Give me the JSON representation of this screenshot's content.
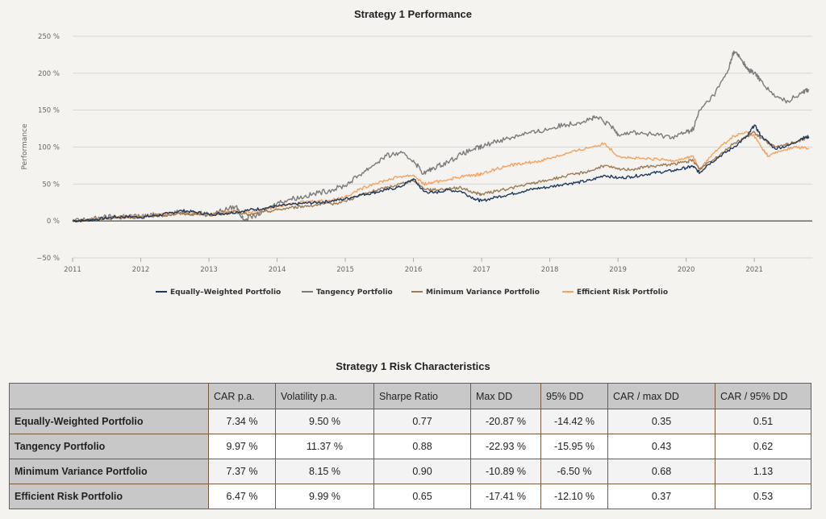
{
  "chart_data": {
    "type": "line",
    "title": "Strategy 1 Performance",
    "xlabel": "",
    "ylabel": "Performance",
    "xlim": [
      2011.0,
      2021.85
    ],
    "ylim": [
      -50,
      250
    ],
    "x_ticks": [
      "2011",
      "2012",
      "2013",
      "2014",
      "2015",
      "2016",
      "2017",
      "2018",
      "2019",
      "2020",
      "2021"
    ],
    "y_ticks": [
      "250 %",
      "200 %",
      "150 %",
      "100 %",
      "50 %",
      "0 %",
      "−50 %"
    ],
    "grid": true,
    "legend_position": "bottom",
    "series": [
      {
        "name": "Equally–Weighted Portfolio",
        "color": "#1f3a5f",
        "points": [
          [
            2011.0,
            0
          ],
          [
            2011.2,
            1
          ],
          [
            2011.4,
            3
          ],
          [
            2011.6,
            5
          ],
          [
            2011.8,
            6
          ],
          [
            2012.0,
            5
          ],
          [
            2012.2,
            7
          ],
          [
            2012.4,
            10
          ],
          [
            2012.6,
            14
          ],
          [
            2012.8,
            12
          ],
          [
            2013.0,
            9
          ],
          [
            2013.2,
            10
          ],
          [
            2013.4,
            12
          ],
          [
            2013.6,
            15
          ],
          [
            2013.8,
            17
          ],
          [
            2014.0,
            20
          ],
          [
            2014.2,
            22
          ],
          [
            2014.4,
            24
          ],
          [
            2014.6,
            25
          ],
          [
            2014.8,
            27
          ],
          [
            2015.0,
            30
          ],
          [
            2015.2,
            35
          ],
          [
            2015.4,
            38
          ],
          [
            2015.6,
            42
          ],
          [
            2015.8,
            46
          ],
          [
            2016.0,
            57
          ],
          [
            2016.15,
            40
          ],
          [
            2016.3,
            38
          ],
          [
            2016.5,
            42
          ],
          [
            2016.7,
            40
          ],
          [
            2016.9,
            30
          ],
          [
            2017.0,
            27
          ],
          [
            2017.2,
            32
          ],
          [
            2017.4,
            36
          ],
          [
            2017.6,
            40
          ],
          [
            2017.8,
            44
          ],
          [
            2018.0,
            46
          ],
          [
            2018.2,
            50
          ],
          [
            2018.4,
            52
          ],
          [
            2018.6,
            55
          ],
          [
            2018.8,
            62
          ],
          [
            2019.0,
            58
          ],
          [
            2019.2,
            60
          ],
          [
            2019.4,
            63
          ],
          [
            2019.6,
            66
          ],
          [
            2019.8,
            68
          ],
          [
            2020.0,
            72
          ],
          [
            2020.1,
            74
          ],
          [
            2020.2,
            65
          ],
          [
            2020.3,
            75
          ],
          [
            2020.5,
            88
          ],
          [
            2020.7,
            100
          ],
          [
            2020.9,
            115
          ],
          [
            2021.0,
            130
          ],
          [
            2021.1,
            115
          ],
          [
            2021.3,
            98
          ],
          [
            2021.5,
            102
          ],
          [
            2021.7,
            112
          ],
          [
            2021.8,
            114
          ]
        ]
      },
      {
        "name": "Tangency Portfolio",
        "color": "#7b7b7b",
        "points": [
          [
            2011.0,
            0
          ],
          [
            2011.2,
            2
          ],
          [
            2011.4,
            4
          ],
          [
            2011.6,
            6
          ],
          [
            2011.8,
            7
          ],
          [
            2012.0,
            6
          ],
          [
            2012.2,
            8
          ],
          [
            2012.4,
            10
          ],
          [
            2012.6,
            12
          ],
          [
            2012.8,
            11
          ],
          [
            2013.0,
            9
          ],
          [
            2013.2,
            14
          ],
          [
            2013.4,
            20
          ],
          [
            2013.5,
            2
          ],
          [
            2013.7,
            8
          ],
          [
            2013.9,
            18
          ],
          [
            2014.0,
            24
          ],
          [
            2014.2,
            30
          ],
          [
            2014.4,
            33
          ],
          [
            2014.6,
            38
          ],
          [
            2014.8,
            42
          ],
          [
            2015.0,
            48
          ],
          [
            2015.2,
            62
          ],
          [
            2015.4,
            75
          ],
          [
            2015.6,
            88
          ],
          [
            2015.8,
            92
          ],
          [
            2016.0,
            82
          ],
          [
            2016.15,
            64
          ],
          [
            2016.3,
            72
          ],
          [
            2016.5,
            80
          ],
          [
            2016.7,
            90
          ],
          [
            2016.9,
            98
          ],
          [
            2017.0,
            100
          ],
          [
            2017.2,
            108
          ],
          [
            2017.4,
            112
          ],
          [
            2017.6,
            118
          ],
          [
            2017.8,
            120
          ],
          [
            2018.0,
            125
          ],
          [
            2018.2,
            130
          ],
          [
            2018.4,
            133
          ],
          [
            2018.6,
            138
          ],
          [
            2018.7,
            140
          ],
          [
            2018.9,
            128
          ],
          [
            2019.0,
            118
          ],
          [
            2019.2,
            120
          ],
          [
            2019.4,
            118
          ],
          [
            2019.6,
            116
          ],
          [
            2019.8,
            114
          ],
          [
            2020.0,
            120
          ],
          [
            2020.1,
            124
          ],
          [
            2020.2,
            150
          ],
          [
            2020.4,
            170
          ],
          [
            2020.6,
            200
          ],
          [
            2020.7,
            230
          ],
          [
            2020.8,
            220
          ],
          [
            2020.9,
            205
          ],
          [
            2021.0,
            200
          ],
          [
            2021.1,
            190
          ],
          [
            2021.3,
            168
          ],
          [
            2021.5,
            162
          ],
          [
            2021.7,
            175
          ],
          [
            2021.8,
            178
          ]
        ]
      },
      {
        "name": "Minimum Variance Portfolio",
        "color": "#9e7a55",
        "points": [
          [
            2011.0,
            0
          ],
          [
            2011.2,
            1
          ],
          [
            2011.4,
            2
          ],
          [
            2011.6,
            4
          ],
          [
            2011.8,
            5
          ],
          [
            2012.0,
            5
          ],
          [
            2012.2,
            7
          ],
          [
            2012.4,
            8
          ],
          [
            2012.6,
            10
          ],
          [
            2012.8,
            9
          ],
          [
            2013.0,
            8
          ],
          [
            2013.2,
            10
          ],
          [
            2013.4,
            12
          ],
          [
            2013.6,
            8
          ],
          [
            2013.8,
            12
          ],
          [
            2014.0,
            15
          ],
          [
            2014.2,
            18
          ],
          [
            2014.4,
            20
          ],
          [
            2014.6,
            22
          ],
          [
            2014.8,
            23
          ],
          [
            2015.0,
            27
          ],
          [
            2015.2,
            34
          ],
          [
            2015.4,
            40
          ],
          [
            2015.6,
            45
          ],
          [
            2015.8,
            50
          ],
          [
            2016.0,
            55
          ],
          [
            2016.15,
            44
          ],
          [
            2016.3,
            42
          ],
          [
            2016.5,
            44
          ],
          [
            2016.7,
            45
          ],
          [
            2016.9,
            38
          ],
          [
            2017.0,
            36
          ],
          [
            2017.2,
            40
          ],
          [
            2017.4,
            44
          ],
          [
            2017.6,
            48
          ],
          [
            2017.8,
            52
          ],
          [
            2018.0,
            56
          ],
          [
            2018.2,
            60
          ],
          [
            2018.4,
            64
          ],
          [
            2018.6,
            68
          ],
          [
            2018.8,
            75
          ],
          [
            2019.0,
            70
          ],
          [
            2019.2,
            70
          ],
          [
            2019.4,
            73
          ],
          [
            2019.6,
            75
          ],
          [
            2019.8,
            77
          ],
          [
            2020.0,
            80
          ],
          [
            2020.1,
            82
          ],
          [
            2020.2,
            70
          ],
          [
            2020.3,
            78
          ],
          [
            2020.5,
            90
          ],
          [
            2020.7,
            105
          ],
          [
            2020.9,
            115
          ],
          [
            2021.0,
            120
          ],
          [
            2021.1,
            112
          ],
          [
            2021.3,
            100
          ],
          [
            2021.5,
            104
          ],
          [
            2021.7,
            110
          ],
          [
            2021.8,
            113
          ]
        ]
      },
      {
        "name": "Efficient Risk Portfolio",
        "color": "#f4a261",
        "points": [
          [
            2011.0,
            0
          ],
          [
            2011.2,
            1
          ],
          [
            2011.4,
            3
          ],
          [
            2011.6,
            5
          ],
          [
            2011.8,
            6
          ],
          [
            2012.0,
            6
          ],
          [
            2012.2,
            8
          ],
          [
            2012.4,
            9
          ],
          [
            2012.6,
            11
          ],
          [
            2012.8,
            10
          ],
          [
            2013.0,
            9
          ],
          [
            2013.2,
            11
          ],
          [
            2013.4,
            14
          ],
          [
            2013.6,
            12
          ],
          [
            2013.8,
            16
          ],
          [
            2014.0,
            20
          ],
          [
            2014.2,
            24
          ],
          [
            2014.4,
            26
          ],
          [
            2014.6,
            27
          ],
          [
            2014.8,
            28
          ],
          [
            2015.0,
            33
          ],
          [
            2015.2,
            42
          ],
          [
            2015.4,
            50
          ],
          [
            2015.6,
            55
          ],
          [
            2015.8,
            60
          ],
          [
            2016.0,
            62
          ],
          [
            2016.15,
            50
          ],
          [
            2016.3,
            52
          ],
          [
            2016.5,
            56
          ],
          [
            2016.7,
            60
          ],
          [
            2016.9,
            62
          ],
          [
            2017.0,
            64
          ],
          [
            2017.2,
            70
          ],
          [
            2017.4,
            75
          ],
          [
            2017.6,
            78
          ],
          [
            2017.8,
            80
          ],
          [
            2018.0,
            85
          ],
          [
            2018.2,
            90
          ],
          [
            2018.4,
            95
          ],
          [
            2018.6,
            100
          ],
          [
            2018.8,
            105
          ],
          [
            2019.0,
            88
          ],
          [
            2019.2,
            85
          ],
          [
            2019.4,
            84
          ],
          [
            2019.6,
            83
          ],
          [
            2019.8,
            82
          ],
          [
            2020.0,
            85
          ],
          [
            2020.1,
            88
          ],
          [
            2020.2,
            68
          ],
          [
            2020.3,
            82
          ],
          [
            2020.5,
            100
          ],
          [
            2020.7,
            115
          ],
          [
            2020.9,
            120
          ],
          [
            2021.0,
            115
          ],
          [
            2021.1,
            100
          ],
          [
            2021.2,
            88
          ],
          [
            2021.4,
            95
          ],
          [
            2021.6,
            100
          ],
          [
            2021.8,
            98
          ]
        ]
      }
    ]
  },
  "table": {
    "title": "Strategy 1 Risk Characteristics",
    "columns": [
      "",
      "CAR p.a.",
      "Volatility p.a.",
      "Sharpe Ratio",
      "Max DD",
      "95% DD",
      "CAR / max DD",
      "CAR / 95% DD"
    ],
    "rows": [
      {
        "name": "Equally-Weighted Portfolio",
        "values": [
          "7.34 %",
          "9.50 %",
          "0.77",
          "-20.87 %",
          "-14.42 %",
          "0.35",
          "0.51"
        ]
      },
      {
        "name": "Tangency Portfolio",
        "values": [
          "9.97 %",
          "11.37 %",
          "0.88",
          "-22.93 %",
          "-15.95 %",
          "0.43",
          "0.62"
        ]
      },
      {
        "name": "Minimum Variance Portfolio",
        "values": [
          "7.37 %",
          "8.15 %",
          "0.90",
          "-10.89 %",
          "-6.50 %",
          "0.68",
          "1.13"
        ]
      },
      {
        "name": "Efficient Risk Portfolio",
        "values": [
          "6.47 %",
          "9.99 %",
          "0.65",
          "-17.41 %",
          "-12.10 %",
          "0.37",
          "0.53"
        ]
      }
    ]
  }
}
